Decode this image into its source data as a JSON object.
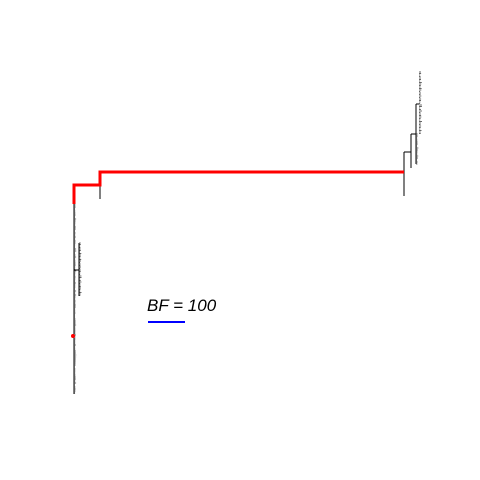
{
  "figure": {
    "background_color": "#ffffff",
    "branch_color": "#000000",
    "highlight_color": "#ff0000",
    "scale_bar_color": "#0000ff",
    "legend_label": "BF = 100",
    "tip_labels_visible": false
  }
}
